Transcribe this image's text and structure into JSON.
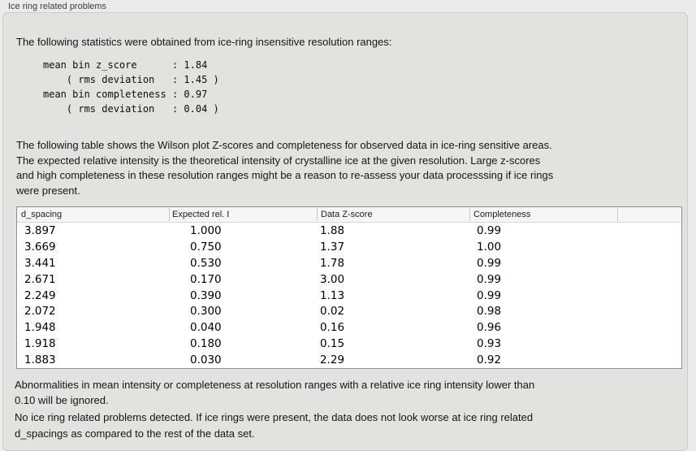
{
  "panel": {
    "title": "Ice ring related problems"
  },
  "intro": "The following statistics were obtained from ice-ring insensitive resolution ranges:",
  "stats_block": "mean bin z_score      : 1.84\n    ( rms deviation   : 1.45 )\nmean bin completeness : 0.97\n    ( rms deviation   : 0.04 )",
  "stats": {
    "mean_bin_z_score": "1.84",
    "z_score_rms_deviation": "1.45",
    "mean_bin_completeness": "0.97",
    "completeness_rms_deviation": "0.04"
  },
  "table_description": "The following table shows the Wilson plot Z-scores and completeness for observed data in ice-ring sensitive areas.\nThe expected relative intensity is the theoretical intensity of crystalline ice at the given resolution. Large z-scores\nand high completeness in these resolution ranges might be a reason to re-assess your data processsing if ice rings\nwere present.",
  "table": {
    "columns": [
      "d_spacing",
      "Expected rel. I",
      "Data Z-score",
      "Completeness"
    ],
    "rows": [
      {
        "d_spacing": "3.897",
        "expected_rel_i": "1.000",
        "data_z_score": "1.88",
        "completeness": "0.99"
      },
      {
        "d_spacing": "3.669",
        "expected_rel_i": "0.750",
        "data_z_score": "1.37",
        "completeness": "1.00"
      },
      {
        "d_spacing": "3.441",
        "expected_rel_i": "0.530",
        "data_z_score": "1.78",
        "completeness": "0.99"
      },
      {
        "d_spacing": "2.671",
        "expected_rel_i": "0.170",
        "data_z_score": "3.00",
        "completeness": "0.99"
      },
      {
        "d_spacing": "2.249",
        "expected_rel_i": "0.390",
        "data_z_score": "1.13",
        "completeness": "0.99"
      },
      {
        "d_spacing": "2.072",
        "expected_rel_i": "0.300",
        "data_z_score": "0.02",
        "completeness": "0.98"
      },
      {
        "d_spacing": "1.948",
        "expected_rel_i": "0.040",
        "data_z_score": "0.16",
        "completeness": "0.96"
      },
      {
        "d_spacing": "1.918",
        "expected_rel_i": "0.180",
        "data_z_score": "0.15",
        "completeness": "0.93"
      },
      {
        "d_spacing": "1.883",
        "expected_rel_i": "0.030",
        "data_z_score": "2.29",
        "completeness": "0.92"
      }
    ]
  },
  "ignore_note": "Abnormalities in mean intensity or completeness at resolution ranges with a relative ice ring intensity lower than\n0.10 will be ignored.",
  "conclusion": "No ice ring related problems detected. If ice rings were present, the data does not look worse at ice ring related\nd_spacings as compared to the rest of the data set.",
  "colors": {
    "window_background": "#ecebeb",
    "groupbox_background": "#e2e2e1",
    "table_background": "#ffffff",
    "table_header_background": "#f6f6f5",
    "table_border": "#8f8f8f",
    "text": "#151515"
  }
}
